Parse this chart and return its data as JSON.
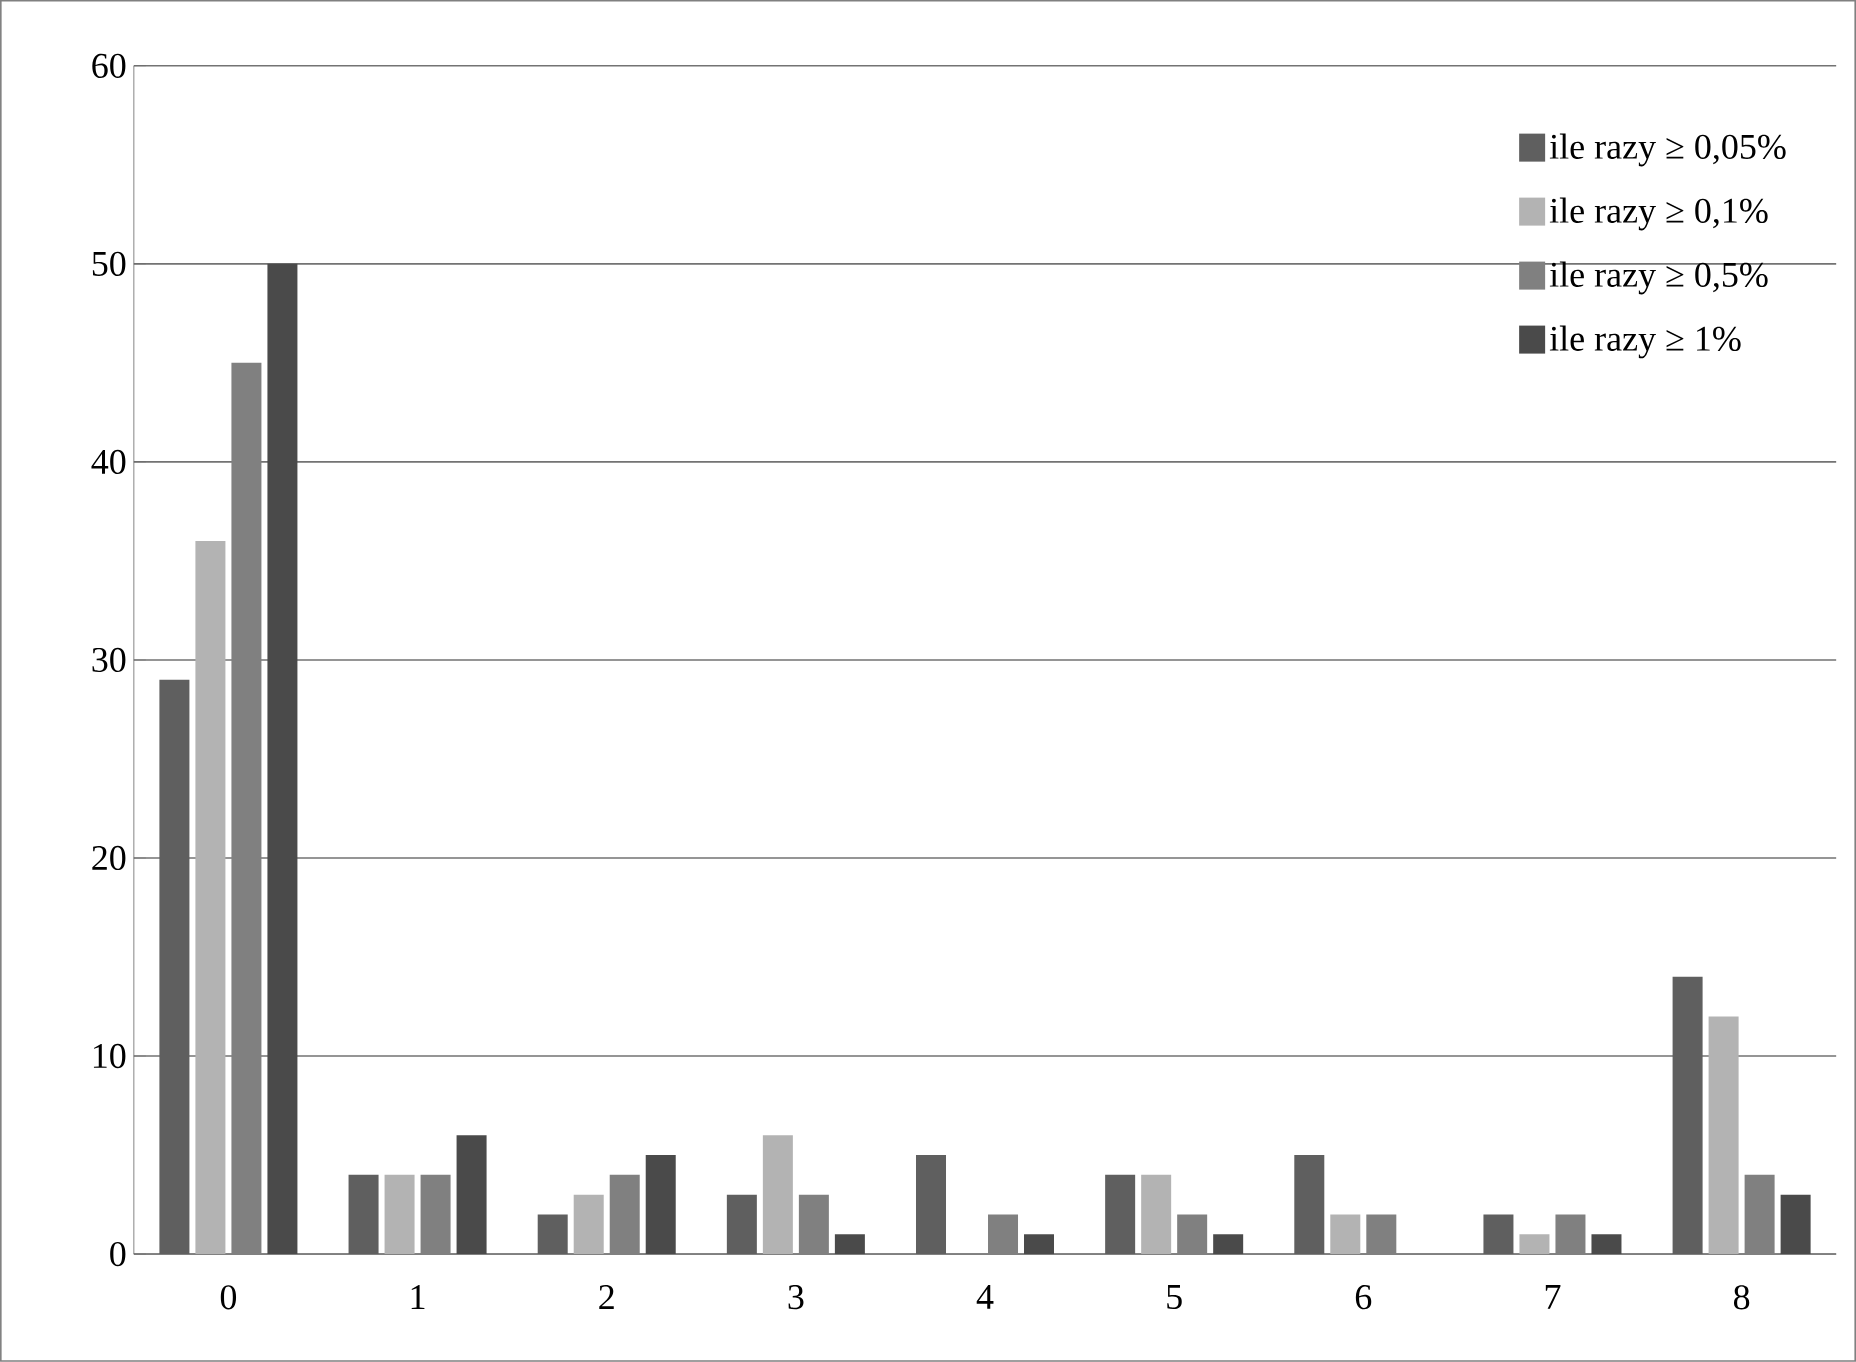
{
  "chart_data": {
    "type": "bar",
    "categories": [
      "0",
      "1",
      "2",
      "3",
      "4",
      "5",
      "6",
      "7",
      "8"
    ],
    "series": [
      {
        "name": "ile razy ≥ 0,05%",
        "color": "#5f5f5f",
        "values": [
          29,
          4,
          2,
          3,
          5,
          4,
          5,
          2,
          14
        ]
      },
      {
        "name": "ile razy ≥ 0,1%",
        "color": "#b3b3b3",
        "values": [
          36,
          4,
          3,
          6,
          0,
          4,
          2,
          1,
          12
        ]
      },
      {
        "name": "ile razy ≥ 0,5%",
        "color": "#808080",
        "values": [
          45,
          4,
          4,
          3,
          2,
          2,
          2,
          2,
          4
        ]
      },
      {
        "name": "ile razy ≥ 1%",
        "color": "#4a4a4a",
        "values": [
          50,
          6,
          5,
          1,
          1,
          1,
          0,
          1,
          3
        ]
      }
    ],
    "ylim": [
      0,
      60
    ],
    "yticks": [
      0,
      10,
      20,
      30,
      40,
      50,
      60
    ],
    "grid": "y",
    "legend": "top right"
  }
}
